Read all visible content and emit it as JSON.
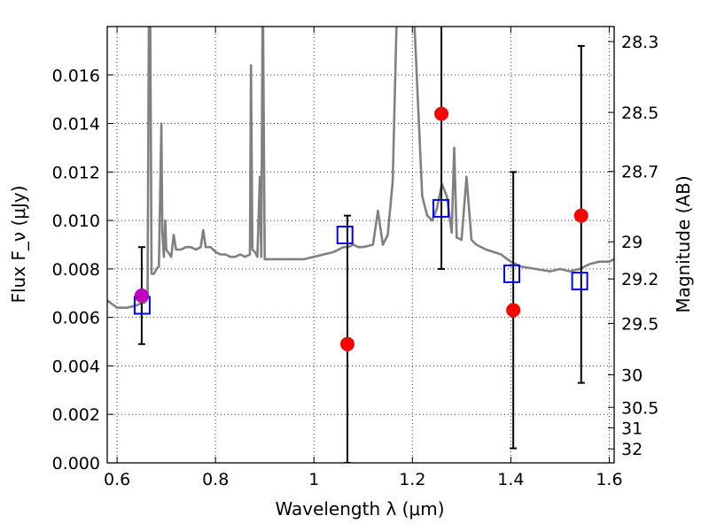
{
  "chart_data": {
    "type": "scatter",
    "xlabel": "Wavelength λ (μm)",
    "ylabel": "Flux F_ν (μJy)",
    "y2label": "Magnitude (AB)",
    "xlim": [
      0.58,
      1.61
    ],
    "ylim": [
      0.0,
      0.018
    ],
    "x_ticks": [
      "0.6",
      "0.8",
      "1",
      "1.2",
      "1.4",
      "1.6"
    ],
    "x_tick_values": [
      0.6,
      0.8,
      1.0,
      1.2,
      1.4,
      1.6
    ],
    "y_ticks": [
      "0.000",
      "0.002",
      "0.004",
      "0.006",
      "0.008",
      "0.010",
      "0.012",
      "0.014",
      "0.016"
    ],
    "y_tick_values": [
      0.0,
      0.002,
      0.004,
      0.006,
      0.008,
      0.01,
      0.012,
      0.014,
      0.016
    ],
    "y2_ticks": [
      "28.3",
      "28.5",
      "28.7",
      "29",
      "29.2",
      "29.5",
      "30",
      "30.5",
      "31",
      "32"
    ],
    "y2_tick_values": [
      28.3,
      28.5,
      28.7,
      29.0,
      29.2,
      29.5,
      30.0,
      30.5,
      31.0,
      32.0
    ],
    "grid": true,
    "colors": {
      "spectrum": "#808080",
      "observed": "#ff0000",
      "observed_optical": "#bf00bf",
      "model": "#0000ff",
      "errorbar": "#000000"
    },
    "spectrum": {
      "x": [
        0.58,
        0.6,
        0.62,
        0.64,
        0.65,
        0.655,
        0.66,
        0.662,
        0.665,
        0.667,
        0.67,
        0.675,
        0.68,
        0.685,
        0.69,
        0.692,
        0.695,
        0.698,
        0.7,
        0.71,
        0.715,
        0.72,
        0.73,
        0.74,
        0.75,
        0.76,
        0.77,
        0.775,
        0.78,
        0.79,
        0.8,
        0.81,
        0.82,
        0.83,
        0.84,
        0.85,
        0.86,
        0.87,
        0.872,
        0.875,
        0.88,
        0.885,
        0.89,
        0.893,
        0.896,
        0.9,
        0.92,
        0.95,
        0.98,
        1.0,
        1.02,
        1.04,
        1.06,
        1.07,
        1.08,
        1.09,
        1.1,
        1.12,
        1.13,
        1.14,
        1.15,
        1.16,
        1.17,
        1.175,
        1.18,
        1.2,
        1.22,
        1.23,
        1.24,
        1.25,
        1.26,
        1.27,
        1.28,
        1.285,
        1.29,
        1.3,
        1.31,
        1.32,
        1.33,
        1.35,
        1.38,
        1.4,
        1.42,
        1.45,
        1.48,
        1.5,
        1.52,
        1.54,
        1.56,
        1.58,
        1.6,
        1.61
      ],
      "y": [
        0.0067,
        0.0064,
        0.0064,
        0.0065,
        0.0066,
        0.0066,
        0.0067,
        0.0068,
        0.02,
        0.02,
        0.0078,
        0.0078,
        0.008,
        0.0081,
        0.014,
        0.0095,
        0.0085,
        0.01,
        0.0088,
        0.0085,
        0.0094,
        0.0088,
        0.0088,
        0.0089,
        0.0089,
        0.0088,
        0.0089,
        0.0096,
        0.0089,
        0.0089,
        0.0087,
        0.0086,
        0.0086,
        0.0085,
        0.0085,
        0.0086,
        0.0085,
        0.0086,
        0.0164,
        0.0088,
        0.0087,
        0.0085,
        0.0118,
        0.0085,
        0.02,
        0.0084,
        0.0084,
        0.0084,
        0.0084,
        0.0085,
        0.0086,
        0.0087,
        0.0089,
        0.0089,
        0.009,
        0.0089,
        0.0089,
        0.009,
        0.0104,
        0.009,
        0.0094,
        0.0116,
        0.02,
        0.02,
        0.02,
        0.02,
        0.011,
        0.0102,
        0.01,
        0.0105,
        0.0115,
        0.011,
        0.0095,
        0.013,
        0.0093,
        0.0092,
        0.0118,
        0.0092,
        0.009,
        0.0088,
        0.0086,
        0.0083,
        0.0081,
        0.008,
        0.0079,
        0.008,
        0.0079,
        0.008,
        0.0082,
        0.0083,
        0.0083,
        0.0084
      ]
    },
    "observed_points": [
      {
        "x": 0.65,
        "y": 0.0069,
        "err_low": 0.0049,
        "err_high": 0.0089,
        "color": "observed_optical"
      },
      {
        "x": 1.068,
        "y": 0.0049,
        "err_low": 0.0,
        "err_high": 0.0102,
        "color": "observed"
      },
      {
        "x": 1.259,
        "y": 0.0144,
        "err_low": 0.008,
        "err_high": 0.0185,
        "color": "observed"
      },
      {
        "x": 1.405,
        "y": 0.0063,
        "err_low": 0.0006,
        "err_high": 0.012,
        "color": "observed"
      },
      {
        "x": 1.543,
        "y": 0.0102,
        "err_low": 0.0033,
        "err_high": 0.0172,
        "color": "observed"
      }
    ],
    "model_points": [
      {
        "x": 0.651,
        "y": 0.0065
      },
      {
        "x": 1.063,
        "y": 0.0094
      },
      {
        "x": 1.258,
        "y": 0.0105
      },
      {
        "x": 1.402,
        "y": 0.0078
      },
      {
        "x": 1.54,
        "y": 0.0075
      }
    ]
  }
}
